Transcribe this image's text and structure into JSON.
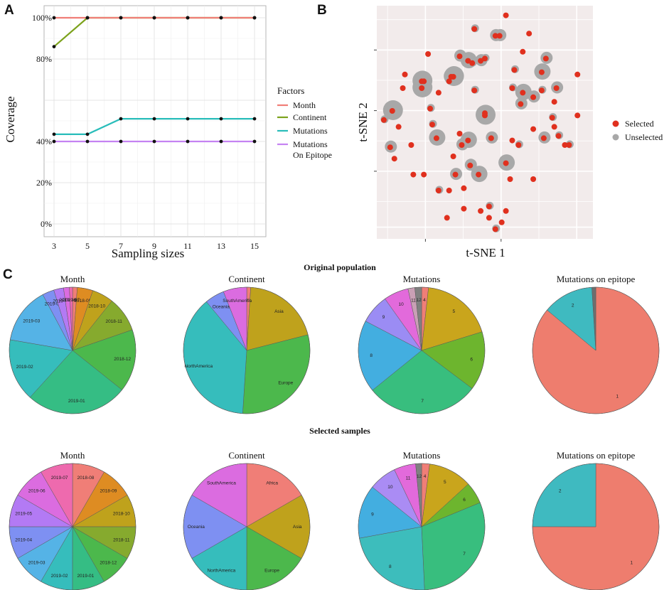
{
  "panels": {
    "a": "A",
    "b": "B",
    "c": "C"
  },
  "chart_data": [
    {
      "type": "line",
      "panel": "A",
      "xlabel": "Sampling sizes",
      "ylabel": "Coverage",
      "x": [
        3,
        5,
        7,
        9,
        11,
        13,
        15
      ],
      "xticks": [
        "3",
        "5",
        "7",
        "9",
        "11",
        "13",
        "15"
      ],
      "yticks": [
        {
          "value": 0,
          "label": "0%"
        },
        {
          "value": 20,
          "label": "20%"
        },
        {
          "value": 40,
          "label": "40%"
        },
        {
          "value": 80,
          "label": "80%"
        },
        {
          "value": 100,
          "label": "100%"
        }
      ],
      "ylim": [
        -2,
        102
      ],
      "grid": true,
      "legend_title": "Factors",
      "series": [
        {
          "name": "Month",
          "color": "#F07E77",
          "values": [
            100,
            100,
            100,
            100,
            100,
            100,
            100
          ]
        },
        {
          "name": "Continent",
          "color": "#7CA21C",
          "values": [
            86,
            100,
            100,
            100,
            100,
            100,
            100
          ]
        },
        {
          "name": "Mutations",
          "color": "#29BDBA",
          "values": [
            43.5,
            43.5,
            51,
            51,
            51,
            51,
            51
          ]
        },
        {
          "name": "Mutations\nOn Epitope",
          "color": "#C583F2",
          "values": [
            40,
            40,
            40,
            40,
            40,
            40,
            40
          ]
        }
      ]
    },
    {
      "type": "scatter",
      "panel": "B",
      "xlabel": "t-SNE 1",
      "ylabel": "t-SNE 2",
      "xlim": [
        0,
        100
      ],
      "ylim": [
        0,
        100
      ],
      "grid": true,
      "legend": [
        {
          "name": "Selected",
          "color": "#E0301E"
        },
        {
          "name": "Unselected",
          "color": "#A8A8A8"
        }
      ],
      "points": [
        [
          60,
          97,
          1,
          0
        ],
        [
          45,
          91,
          1,
          1
        ],
        [
          23,
          80,
          1,
          0
        ],
        [
          38,
          79,
          1,
          2
        ],
        [
          42,
          77,
          1,
          3
        ],
        [
          44,
          76,
          1,
          1
        ],
        [
          50,
          78,
          1,
          1
        ],
        [
          48,
          77,
          1,
          2
        ],
        [
          68,
          81,
          1,
          0
        ],
        [
          79,
          78,
          1,
          2
        ],
        [
          34,
          70,
          1,
          3
        ],
        [
          57,
          88,
          1,
          2
        ],
        [
          71,
          89,
          1,
          0
        ],
        [
          64,
          73,
          1,
          1
        ],
        [
          12,
          71,
          1,
          0
        ],
        [
          11,
          65,
          1,
          0
        ],
        [
          20,
          68,
          1,
          4
        ],
        [
          6,
          55,
          1,
          4
        ],
        [
          20,
          65,
          1,
          4
        ],
        [
          21,
          68,
          1,
          2
        ],
        [
          5,
          39,
          1,
          2
        ],
        [
          9,
          48,
          1,
          0
        ],
        [
          2,
          51,
          1,
          1
        ],
        [
          7,
          34,
          1,
          0
        ],
        [
          35,
          70,
          1,
          4
        ],
        [
          45,
          64,
          1,
          1
        ],
        [
          50,
          53,
          1,
          4
        ],
        [
          24,
          56,
          1,
          1
        ],
        [
          38,
          45,
          1,
          0
        ],
        [
          43,
          31,
          1,
          2
        ],
        [
          53,
          43,
          1,
          2
        ],
        [
          67,
          58,
          1,
          2
        ],
        [
          73,
          47,
          1,
          0
        ],
        [
          78,
          43,
          1,
          2
        ],
        [
          77,
          72,
          1,
          3
        ],
        [
          63,
          42,
          1,
          0
        ],
        [
          68,
          63,
          1,
          3
        ],
        [
          35,
          35,
          1,
          0
        ],
        [
          36,
          27,
          1,
          2
        ],
        [
          40,
          21,
          1,
          0
        ],
        [
          42,
          42,
          1,
          3
        ],
        [
          27,
          43,
          1,
          3
        ],
        [
          28,
          63,
          1,
          0
        ],
        [
          33,
          68,
          1,
          1
        ],
        [
          39,
          40,
          1,
          2
        ],
        [
          47,
          27,
          1,
          3
        ],
        [
          50,
          54,
          1,
          0
        ],
        [
          60,
          32,
          1,
          3
        ],
        [
          63,
          65,
          1,
          1
        ],
        [
          62,
          25,
          1,
          0
        ],
        [
          66,
          40,
          1,
          1
        ],
        [
          77,
          64,
          1,
          1
        ],
        [
          83,
          48,
          1,
          0
        ],
        [
          85,
          44,
          1,
          1
        ],
        [
          73,
          25,
          1,
          0
        ],
        [
          33,
          20,
          1,
          0
        ],
        [
          15,
          40,
          1,
          0
        ],
        [
          48,
          11,
          1,
          0
        ],
        [
          52,
          13,
          1,
          1
        ],
        [
          60,
          11,
          1,
          0
        ],
        [
          58,
          6,
          1,
          0
        ],
        [
          52,
          8,
          1,
          0
        ],
        [
          55,
          3,
          1,
          1
        ],
        [
          40,
          12,
          1,
          0
        ],
        [
          32,
          8,
          1,
          0
        ],
        [
          94,
          71,
          1,
          0
        ],
        [
          94,
          53,
          1,
          0
        ],
        [
          88,
          40,
          1,
          0
        ],
        [
          73,
          61,
          1,
          2
        ],
        [
          83,
          59,
          1,
          0
        ],
        [
          82,
          52,
          1,
          1
        ],
        [
          55,
          88,
          1,
          2
        ],
        [
          28,
          20,
          1,
          1
        ],
        [
          16,
          27,
          1,
          0
        ],
        [
          21,
          27,
          1,
          0
        ],
        [
          25,
          49,
          1,
          1
        ],
        [
          90,
          40,
          1,
          1
        ],
        [
          84,
          65,
          1,
          2
        ]
      ]
    },
    {
      "type": "pie",
      "panel": "C",
      "row_titles": [
        "Original population",
        "Selected samples"
      ],
      "charts": [
        {
          "title": "Month",
          "row": 0,
          "start": -1.57,
          "labels": [
            "2018-08",
            "2018-09",
            "2018-10",
            "2018-11",
            "2018-12",
            "2019-01",
            "2019-02",
            "2019-03",
            "2019-04",
            "2019-05",
            "2019-06",
            "2019-07"
          ],
          "values": [
            1.2,
            4.0,
            5.5,
            9.0,
            16.0,
            26.0,
            16.0,
            14.5,
            3.0,
            2.5,
            1.5,
            0.8
          ],
          "colors": [
            "#F07E77",
            "#DE8C22",
            "#BFA21C",
            "#86AA2E",
            "#4CB84C",
            "#35BD84",
            "#36BDBC",
            "#55B3E6",
            "#7E90F2",
            "#B37AF4",
            "#DB6CE0",
            "#EE6AAE"
          ]
        },
        {
          "title": "Continent",
          "row": 0,
          "start": -1.57,
          "labels": [
            "Africa",
            "Asia",
            "Europe",
            "NorthAmerica",
            "Oceania",
            "SouthAmerica"
          ],
          "values": [
            1.0,
            20.0,
            30.0,
            38.0,
            5.0,
            6.0
          ],
          "colors": [
            "#F07E77",
            "#BFA21C",
            "#4CB84C",
            "#36BDBC",
            "#7E90F2",
            "#DB6CE0"
          ]
        },
        {
          "title": "Mutations",
          "row": 0,
          "start": -1.57,
          "labels": [
            "4",
            "5",
            "6",
            "7",
            "8",
            "9",
            "10",
            "11",
            "12"
          ],
          "values": [
            1.5,
            16.0,
            13.0,
            25.0,
            16.0,
            6.5,
            5.5,
            1.5,
            1.5
          ],
          "colors": [
            "#F07E77",
            "#C9A51C",
            "#6DB52E",
            "#38BE7E",
            "#43AEE0",
            "#9B8CF4",
            "#E26ADB",
            "#C9A0B5",
            "#808080"
          ]
        },
        {
          "title": "Mutations on epitope",
          "row": 0,
          "start": -1.57,
          "labels": [
            "1",
            "2",
            ""
          ],
          "values": [
            86.0,
            13.0,
            1.0
          ],
          "colors": [
            "#EE7D6E",
            "#3FBAC0",
            "#6E6E6E"
          ]
        },
        {
          "title": "Month",
          "row": 1,
          "start": -1.57,
          "labels": [
            "2018-08",
            "2018-09",
            "2018-10",
            "2018-11",
            "2018-12",
            "2019-01",
            "2019-02",
            "2019-03",
            "2019-04",
            "2019-05",
            "2019-06",
            "2019-07"
          ],
          "values": [
            1,
            1,
            1,
            1,
            1,
            1,
            1,
            1,
            1,
            1,
            1,
            1
          ],
          "colors": [
            "#F07E77",
            "#DE8C22",
            "#BFA21C",
            "#86AA2E",
            "#4CB84C",
            "#35BD84",
            "#36BDBC",
            "#55B3E6",
            "#7E90F2",
            "#B37AF4",
            "#DB6CE0",
            "#EE6AAE"
          ]
        },
        {
          "title": "Continent",
          "row": 1,
          "start": -1.57,
          "labels": [
            "Africa",
            "Asia",
            "Europe",
            "NorthAmerica",
            "Oceania",
            "SouthAmerica"
          ],
          "values": [
            1,
            1,
            1,
            1,
            1,
            1
          ],
          "colors": [
            "#F07E77",
            "#BFA21C",
            "#4CB84C",
            "#36BDBC",
            "#7E90F2",
            "#DB6CE0"
          ]
        },
        {
          "title": "Mutations",
          "row": 1,
          "start": -1.57,
          "labels": [
            "4",
            "5",
            "6",
            "7",
            "8",
            "9",
            "10",
            "11",
            "12"
          ],
          "values": [
            2.0,
            11.0,
            5.5,
            30.0,
            22.5,
            13.5,
            7.0,
            5.5,
            1.5
          ],
          "colors": [
            "#F07E77",
            "#C9A51C",
            "#6DB52E",
            "#38BE7E",
            "#3DBDBC",
            "#43AEE0",
            "#AA8CF4",
            "#E26ADB",
            "#808080"
          ]
        },
        {
          "title": "Mutations on epitope",
          "row": 1,
          "start": -1.57,
          "labels": [
            "1",
            "2"
          ],
          "values": [
            75.0,
            25.0
          ],
          "colors": [
            "#EE7D6E",
            "#3FBAC0"
          ]
        }
      ]
    }
  ]
}
